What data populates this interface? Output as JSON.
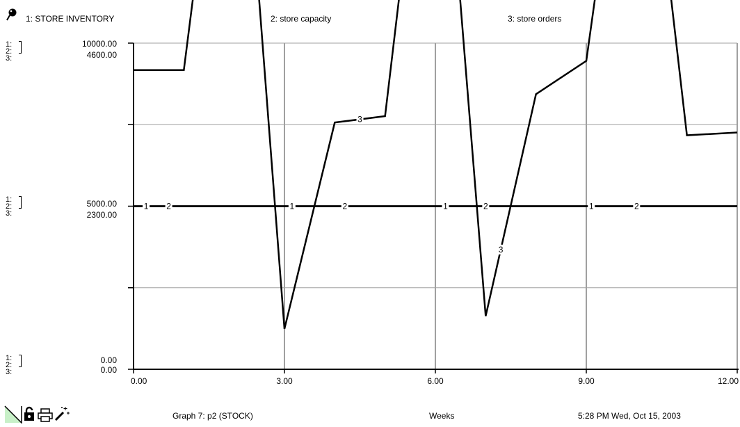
{
  "legend": [
    {
      "label": "1: STORE INVENTORY"
    },
    {
      "label": "2: store capacity"
    },
    {
      "label": "3: store orders"
    }
  ],
  "yaxis": {
    "row_labels": [
      "1:",
      "2:",
      "3:"
    ],
    "top": {
      "scale1": "10000.00",
      "scale3": "4600.00"
    },
    "mid": {
      "scale1": "5000.00",
      "scale3": "2300.00"
    },
    "bottom": {
      "scale1": "0.00",
      "scale3": "0.00"
    }
  },
  "footer": {
    "graph_title": "Graph 7: p2 (STOCK)",
    "xunit": "Weeks",
    "timestamp": "5:28 PM   Wed, Oct 15, 2003"
  },
  "icons": [
    "scale-toggle-icon",
    "lock-icon",
    "print-icon",
    "magic-wand-icon",
    "pin-icon"
  ],
  "colors": {
    "line": "#000000",
    "grid": "#a0a0a0",
    "toggle_fill": "#c8f0c8"
  },
  "chart_data": {
    "type": "line",
    "xlabel": "Weeks",
    "x": [
      0,
      1,
      2,
      3,
      4,
      5,
      6,
      7,
      8,
      9,
      10,
      11,
      12
    ],
    "xticks": [
      "0.00",
      "3.00",
      "6.00",
      "9.00",
      "12.00"
    ],
    "xlim": [
      0,
      12
    ],
    "grid": true,
    "series": [
      {
        "name": "1: STORE INVENTORY",
        "marker": "1",
        "scale": [
          0,
          10000
        ],
        "values": [
          5000,
          5000,
          5000,
          5000,
          5000,
          5000,
          5000,
          5000,
          5000,
          5000,
          5000,
          5000,
          5000
        ]
      },
      {
        "name": "2: store capacity",
        "marker": "2",
        "scale": [
          0,
          10000
        ],
        "values": [
          5000,
          5000,
          5000,
          5000,
          5000,
          5000,
          5000,
          5000,
          5000,
          5000,
          5000,
          5000,
          5000
        ]
      },
      {
        "name": "3: store orders",
        "marker": "3",
        "scale": [
          0,
          4600
        ],
        "values": [
          4220,
          4220,
          9800,
          570,
          3480,
          3570,
          9550,
          750,
          3880,
          4350,
          9440,
          3300,
          3340
        ]
      }
    ]
  }
}
